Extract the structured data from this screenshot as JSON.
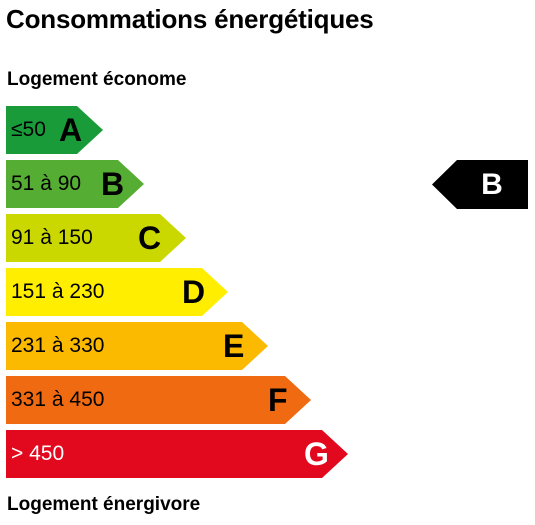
{
  "title": "Consommations énergétiques",
  "top_caption": "Logement économe",
  "bottom_caption": "Logement énergivore",
  "classes": [
    {
      "range": "≤50",
      "letter": "A",
      "color": "#1a9b3a",
      "text_color": "#000000"
    },
    {
      "range": "51 à 90",
      "letter": "B",
      "color": "#56ad34",
      "text_color": "#000000"
    },
    {
      "range": "91 à 150",
      "letter": "C",
      "color": "#cbd800",
      "text_color": "#000000"
    },
    {
      "range": "151 à 230",
      "letter": "D",
      "color": "#ffee00",
      "text_color": "#000000"
    },
    {
      "range": "231 à 330",
      "letter": "E",
      "color": "#fbb900",
      "text_color": "#000000"
    },
    {
      "range": "331 à 450",
      "letter": "F",
      "color": "#ef6a10",
      "text_color": "#000000"
    },
    {
      "range": "> 450",
      "letter": "G",
      "color": "#e2081e",
      "text_color": "#ffffff"
    }
  ],
  "current_rating": {
    "letter": "B",
    "color": "#000000"
  }
}
